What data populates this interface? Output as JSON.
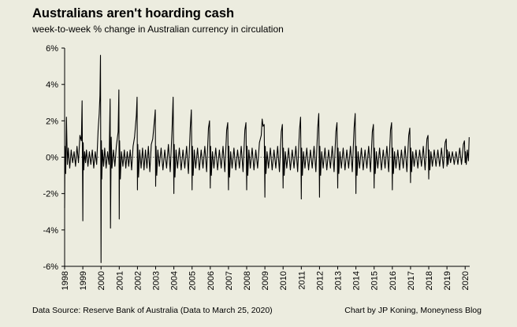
{
  "title": "Australians aren't hoarding cash",
  "subtitle": "week-to-week % change in Australian currency in circulation",
  "footer": {
    "source": "Data Source: Reserve Bank of Australia (Data to March 25, 2020)",
    "credit": "Chart by JP Koning, Moneyness Blog"
  },
  "colors": {
    "background": "#ececdf",
    "line": "#000000",
    "axis": "#000000"
  },
  "chart_data": {
    "type": "line",
    "title": "Australians aren't hoarding cash",
    "subtitle": "week-to-week % change in Australian currency in circulation",
    "xlabel": "",
    "ylabel": "",
    "xlim": [
      1998.0,
      2020.25
    ],
    "ylim": [
      -6,
      6
    ],
    "y_ticks": [
      -6,
      -4,
      -2,
      0,
      2,
      4,
      6
    ],
    "y_tick_labels": [
      "-6%",
      "-4%",
      "-2%",
      "0%",
      "2%",
      "4%",
      "6%"
    ],
    "x_ticks": [
      1998,
      1999,
      2000,
      2001,
      2002,
      2003,
      2004,
      2005,
      2006,
      2007,
      2008,
      2009,
      2010,
      2011,
      2012,
      2013,
      2014,
      2015,
      2016,
      2017,
      2018,
      2019,
      2020
    ],
    "x_tick_labels": [
      "1998",
      "1999",
      "2000",
      "2001",
      "2002",
      "2003",
      "2004",
      "2005",
      "2006",
      "2007",
      "2008",
      "2009",
      "2010",
      "2011",
      "2012",
      "2013",
      "2014",
      "2015",
      "2016",
      "2017",
      "2018",
      "2019",
      "2020"
    ],
    "grid": false,
    "series": [
      {
        "name": "",
        "x": [
          1998.0,
          1998.02,
          1998.06,
          1998.1,
          1998.15,
          1998.2,
          1998.28,
          1998.36,
          1998.44,
          1998.52,
          1998.6,
          1998.68,
          1998.76,
          1998.84,
          1998.92,
          1998.96,
          1999.0,
          1999.02,
          1999.05,
          1999.1,
          1999.15,
          1999.2,
          1999.28,
          1999.36,
          1999.44,
          1999.52,
          1999.6,
          1999.68,
          1999.76,
          1999.84,
          1999.9,
          1999.94,
          1999.97,
          2000.0,
          2000.02,
          2000.04,
          2000.08,
          2000.14,
          2000.2,
          2000.28,
          2000.36,
          2000.44,
          2000.5,
          2000.52,
          2000.56,
          2000.6,
          2000.68,
          2000.76,
          2000.84,
          2000.94,
          2000.98,
          2001.0,
          2001.02,
          2001.06,
          2001.12,
          2001.2,
          2001.28,
          2001.36,
          2001.44,
          2001.52,
          2001.6,
          2001.68,
          2001.76,
          2001.84,
          2001.94,
          2001.98,
          2002.0,
          2002.02,
          2002.06,
          2002.12,
          2002.2,
          2002.28,
          2002.36,
          2002.44,
          2002.52,
          2002.6,
          2002.68,
          2002.76,
          2002.84,
          2002.94,
          2002.98,
          2003.0,
          2003.02,
          2003.06,
          2003.12,
          2003.2,
          2003.3,
          2003.4,
          2003.5,
          2003.6,
          2003.7,
          2003.8,
          2003.9,
          2003.96,
          2004.0,
          2004.02,
          2004.06,
          2004.12,
          2004.2,
          2004.3,
          2004.4,
          2004.5,
          2004.6,
          2004.7,
          2004.8,
          2004.9,
          2004.96,
          2005.0,
          2005.02,
          2005.06,
          2005.12,
          2005.2,
          2005.3,
          2005.4,
          2005.5,
          2005.6,
          2005.7,
          2005.8,
          2005.9,
          2005.96,
          2006.0,
          2006.02,
          2006.06,
          2006.12,
          2006.2,
          2006.3,
          2006.4,
          2006.5,
          2006.6,
          2006.7,
          2006.8,
          2006.9,
          2006.96,
          2007.0,
          2007.02,
          2007.06,
          2007.12,
          2007.2,
          2007.3,
          2007.4,
          2007.5,
          2007.6,
          2007.7,
          2007.8,
          2007.9,
          2007.96,
          2008.0,
          2008.02,
          2008.06,
          2008.12,
          2008.2,
          2008.3,
          2008.4,
          2008.5,
          2008.6,
          2008.7,
          2008.8,
          2008.85,
          2008.9,
          2008.96,
          2009.0,
          2009.02,
          2009.06,
          2009.12,
          2009.2,
          2009.3,
          2009.4,
          2009.5,
          2009.6,
          2009.7,
          2009.8,
          2009.9,
          2009.96,
          2010.0,
          2010.02,
          2010.06,
          2010.12,
          2010.2,
          2010.3,
          2010.4,
          2010.5,
          2010.6,
          2010.7,
          2010.8,
          2010.9,
          2010.96,
          2011.0,
          2011.02,
          2011.06,
          2011.12,
          2011.2,
          2011.3,
          2011.4,
          2011.5,
          2011.6,
          2011.7,
          2011.8,
          2011.9,
          2011.96,
          2012.0,
          2012.02,
          2012.06,
          2012.12,
          2012.2,
          2012.3,
          2012.4,
          2012.5,
          2012.6,
          2012.7,
          2012.8,
          2012.9,
          2012.96,
          2013.0,
          2013.02,
          2013.06,
          2013.12,
          2013.2,
          2013.3,
          2013.4,
          2013.5,
          2013.6,
          2013.7,
          2013.8,
          2013.9,
          2013.96,
          2014.0,
          2014.02,
          2014.06,
          2014.12,
          2014.2,
          2014.3,
          2014.4,
          2014.5,
          2014.6,
          2014.7,
          2014.8,
          2014.9,
          2014.96,
          2015.0,
          2015.02,
          2015.06,
          2015.12,
          2015.2,
          2015.3,
          2015.4,
          2015.5,
          2015.6,
          2015.7,
          2015.8,
          2015.9,
          2015.96,
          2016.0,
          2016.02,
          2016.06,
          2016.12,
          2016.2,
          2016.3,
          2016.4,
          2016.5,
          2016.6,
          2016.7,
          2016.8,
          2016.9,
          2016.96,
          2017.0,
          2017.02,
          2017.06,
          2017.12,
          2017.2,
          2017.3,
          2017.4,
          2017.5,
          2017.6,
          2017.7,
          2017.8,
          2017.9,
          2017.96,
          2018.0,
          2018.02,
          2018.06,
          2018.12,
          2018.2,
          2018.3,
          2018.4,
          2018.5,
          2018.6,
          2018.7,
          2018.8,
          2018.9,
          2018.96,
          2019.0,
          2019.02,
          2019.06,
          2019.12,
          2019.2,
          2019.3,
          2019.4,
          2019.5,
          2019.6,
          2019.7,
          2019.8,
          2019.9,
          2019.96,
          2020.0,
          2020.02,
          2020.06,
          2020.12,
          2020.18,
          2020.22
        ],
        "values": [
          -2.8,
          0.6,
          -0.9,
          2.2,
          -0.4,
          0.5,
          -0.6,
          0.4,
          -0.3,
          0.3,
          -0.5,
          0.6,
          -0.3,
          1.2,
          0.9,
          3.1,
          -3.5,
          0.8,
          -0.7,
          0.3,
          -0.3,
          0.4,
          -0.5,
          0.3,
          -0.4,
          0.4,
          -0.6,
          0.3,
          -0.4,
          1.5,
          2.4,
          3.4,
          5.6,
          -5.8,
          0.9,
          -1.2,
          0.4,
          -0.5,
          0.5,
          -0.6,
          0.3,
          -0.4,
          3.2,
          -3.9,
          1.1,
          -0.6,
          0.4,
          -0.5,
          0.6,
          1.4,
          3.7,
          -3.4,
          0.9,
          -1.2,
          0.3,
          -0.5,
          0.4,
          -0.6,
          0.3,
          -0.5,
          0.4,
          -0.7,
          0.6,
          1.1,
          2.3,
          3.3,
          -1.8,
          0.7,
          -1.1,
          0.4,
          -0.6,
          0.5,
          -0.7,
          0.4,
          -0.6,
          0.6,
          -0.8,
          0.7,
          1.0,
          2.1,
          2.6,
          -1.6,
          0.6,
          -1.0,
          0.4,
          -0.5,
          0.5,
          -0.7,
          0.4,
          -0.6,
          0.7,
          -0.8,
          1.5,
          3.3,
          -2.0,
          0.7,
          -1.1,
          0.4,
          -0.6,
          0.5,
          -0.7,
          0.4,
          -0.6,
          0.6,
          -0.9,
          1.6,
          2.6,
          -1.8,
          0.6,
          -1.0,
          0.4,
          -0.6,
          0.5,
          -0.7,
          0.4,
          -0.6,
          0.6,
          -0.8,
          1.6,
          2.0,
          -1.7,
          0.6,
          -1.0,
          0.3,
          -0.6,
          0.5,
          -0.7,
          0.4,
          -0.6,
          0.6,
          -0.8,
          1.5,
          1.9,
          -1.8,
          0.6,
          -1.1,
          0.3,
          -0.6,
          0.5,
          -0.7,
          0.4,
          -0.6,
          0.6,
          -0.8,
          1.5,
          1.9,
          -1.8,
          0.6,
          -1.0,
          0.4,
          -0.6,
          0.5,
          -0.7,
          0.4,
          -0.6,
          0.8,
          1.2,
          2.1,
          1.7,
          1.8,
          -2.2,
          0.6,
          -0.9,
          0.3,
          -0.6,
          0.5,
          -0.7,
          0.4,
          -0.6,
          0.6,
          -0.8,
          1.4,
          1.8,
          -1.7,
          0.5,
          -1.0,
          0.3,
          -0.6,
          0.5,
          -0.7,
          0.4,
          -0.6,
          0.6,
          -0.8,
          1.5,
          2.2,
          -2.3,
          0.5,
          -1.0,
          0.3,
          -0.6,
          0.5,
          -0.7,
          0.4,
          -0.6,
          0.6,
          -0.8,
          1.6,
          2.4,
          -2.2,
          0.6,
          -1.0,
          0.3,
          -0.6,
          0.5,
          -0.7,
          0.4,
          -0.6,
          0.6,
          -0.8,
          1.4,
          1.9,
          -1.7,
          0.5,
          -0.9,
          0.3,
          -0.6,
          0.5,
          -0.7,
          0.4,
          -0.6,
          0.6,
          -0.8,
          1.6,
          2.4,
          -2.0,
          0.6,
          -1.0,
          0.3,
          -0.6,
          0.5,
          -0.7,
          0.4,
          -0.6,
          0.6,
          -0.8,
          1.4,
          1.8,
          -1.7,
          0.5,
          -0.9,
          0.3,
          -0.6,
          0.5,
          -0.7,
          0.4,
          -0.6,
          0.6,
          -0.8,
          1.5,
          1.9,
          -1.8,
          0.5,
          -0.9,
          0.3,
          -0.6,
          0.4,
          -0.7,
          0.4,
          -0.6,
          0.6,
          -0.8,
          1.2,
          1.6,
          -1.4,
          0.5,
          -0.8,
          0.3,
          -0.5,
          0.4,
          -0.6,
          0.4,
          -0.5,
          0.6,
          -0.7,
          1.0,
          1.2,
          -1.2,
          0.4,
          -0.7,
          0.3,
          -0.5,
          0.4,
          -0.5,
          0.4,
          -0.5,
          0.5,
          -0.6,
          0.8,
          1.0,
          -0.5,
          0.4,
          -0.4,
          0.3,
          -0.3,
          0.3,
          -0.4,
          0.3,
          -0.4,
          0.5,
          -0.4,
          0.7,
          0.9,
          -0.3,
          0.3,
          -0.4,
          0.4,
          -0.2,
          1.1
        ]
      }
    ]
  }
}
